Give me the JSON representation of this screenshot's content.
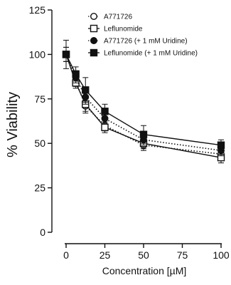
{
  "chart_data": {
    "type": "line",
    "xlabel": "Concentration [µM]",
    "ylabel": "% Viability",
    "xlim": [
      0,
      100
    ],
    "ylim": [
      0,
      125
    ],
    "x_ticks": [
      0,
      25,
      50,
      75,
      100
    ],
    "y_ticks": [
      0,
      25,
      50,
      75,
      100,
      125
    ],
    "x": [
      0,
      6.25,
      12.5,
      25,
      50,
      100
    ],
    "legend_position": "top-right",
    "grid": false,
    "series": [
      {
        "name": "A771726",
        "marker": "open-circle",
        "line": "dotted",
        "values": [
          100,
          85,
          71,
          60,
          49,
          44
        ],
        "errors": [
          4,
          3,
          4,
          3,
          3,
          3
        ]
      },
      {
        "name": "Leflunomide",
        "marker": "open-square",
        "line": "solid",
        "values": [
          100,
          84,
          72,
          59,
          50,
          42
        ],
        "errors": [
          4,
          3,
          4,
          3,
          3,
          3
        ]
      },
      {
        "name": "A771726 (+ 1 mM Uridine)",
        "marker": "filled-circle",
        "line": "dotted",
        "values": [
          100,
          87,
          76,
          64,
          52,
          46
        ],
        "errors": [
          4,
          3,
          4,
          3,
          3,
          3
        ]
      },
      {
        "name": "Leflunomide (+ 1 mM Uridine)",
        "marker": "filled-square",
        "line": "solid",
        "values": [
          100,
          89,
          80,
          68,
          55,
          49
        ],
        "errors": [
          8,
          4,
          7,
          4,
          5,
          3
        ]
      }
    ]
  }
}
